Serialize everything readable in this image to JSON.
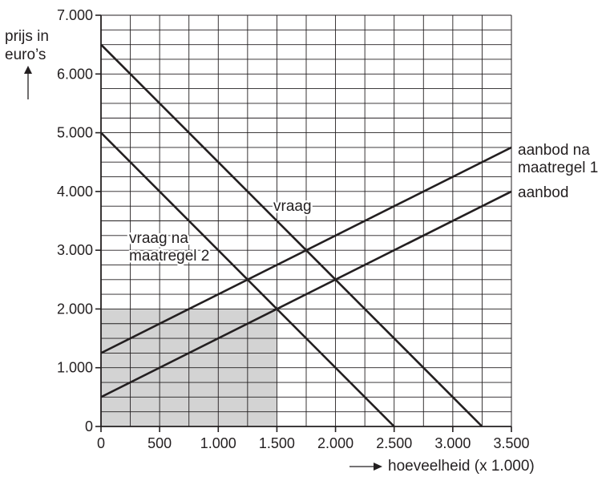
{
  "chart_data": {
    "type": "line",
    "ylabel_lines": [
      "prijs in",
      "euro’s"
    ],
    "xlabel": "hoeveelheid (x 1.000)",
    "xlim": [
      0,
      3500
    ],
    "ylim": [
      0,
      7000
    ],
    "x_ticks": [
      "0",
      "500",
      "1.000",
      "1.500",
      "2.000",
      "2.500",
      "3.000",
      "3.500"
    ],
    "y_ticks": [
      "0",
      "1.000",
      "2.000",
      "3.000",
      "4.000",
      "5.000",
      "6.000",
      "7.000"
    ],
    "grid": true,
    "series": [
      {
        "name": "vraag",
        "x": [
          0,
          3250
        ],
        "y": [
          6500,
          0
        ]
      },
      {
        "name": "vraag na maatregel 2",
        "x": [
          0,
          2500
        ],
        "y": [
          5000,
          0
        ]
      },
      {
        "name": "aanbod",
        "x": [
          0,
          3500
        ],
        "y": [
          500,
          4000
        ]
      },
      {
        "name": "aanbod na maatregel 1",
        "x": [
          0,
          3500
        ],
        "y": [
          1250,
          4750
        ]
      }
    ],
    "shaded_region": {
      "x": [
        0,
        1500
      ],
      "y": [
        0,
        2000
      ],
      "color": "#d3d3d3"
    },
    "annotations": [
      {
        "text_lines": [
          "vraag"
        ]
      },
      {
        "text_lines": [
          "vraag na",
          "maatregel 2"
        ]
      },
      {
        "text_lines": [
          "aanbod na",
          "maatregel 1"
        ]
      },
      {
        "text_lines": [
          "aanbod"
        ]
      }
    ],
    "colors": {
      "line": "#231f20",
      "grid": "#231f20",
      "shade": "#d3d3d3"
    }
  }
}
